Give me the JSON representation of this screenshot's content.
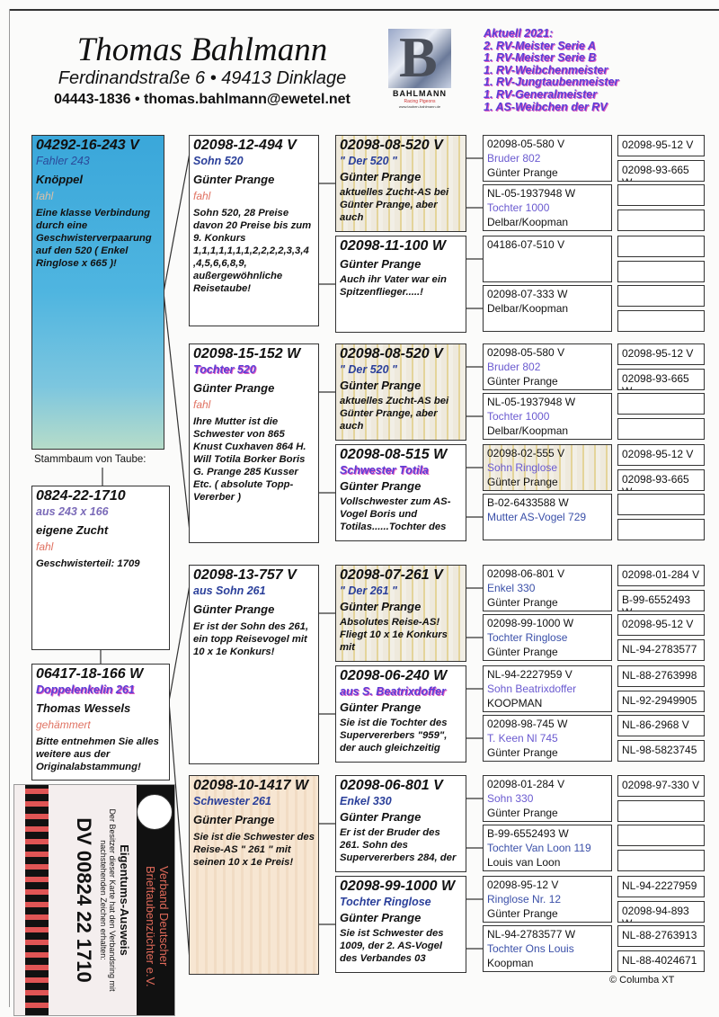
{
  "header": {
    "name": "Thomas Bahlmann",
    "address": "Ferdinandstraße 6 • 49413 Dinklage",
    "contact": "04443-1836 • thomas.bahlmann@ewetel.net",
    "logo": {
      "letter": "B",
      "title": "BAHLMANN",
      "subtitle": "Racing Pigeons",
      "url": "www.tauben-bahlmann.de"
    },
    "achievements": [
      "Aktuell 2021:",
      "2. RV-Meister Serie A",
      "1. RV-Meister Serie B",
      "1. RV-Weibchenmeister",
      "1. RV-Jungtaubenmeister",
      "1. RV-Generalmeister",
      "1. AS-Weibchen der RV"
    ]
  },
  "colors": {
    "name_blue": "#2a3f9a",
    "color_red": "#e07262",
    "achievements": "#5b3ed6",
    "main_box": "#3aa7da"
  },
  "subject": {
    "ring": "04292-16-243 V",
    "name": "Fahler 243",
    "breeder": "Knöppel",
    "color": "fahl",
    "note": "Eine klasse Verbindung durch eine Geschwisterverpaarung auf  den 520 ( Enkel Ringlose x 665 )!"
  },
  "stammbaum_label": "Stammbaum von Taube:",
  "partner": {
    "ring": "0824-22-1710",
    "name": "aus 243 x 166",
    "breeder": "eigene Zucht",
    "color": "fahl",
    "note": "Geschwisterteil: 1709"
  },
  "mother": {
    "ring": "06417-18-166 W",
    "name": "Doppelenkelin 261",
    "breeder": "Thomas Wessels",
    "color": "gehämmert",
    "note": "Bitte entnehmen Sie alles weitere aus der Originalabstammung!"
  },
  "parents": [
    {
      "ring": "02098-12-494 V",
      "name": "Sohn 520",
      "breeder": "Günter Prange",
      "color": "fahl",
      "note": "Sohn 520, 28 Preise davon 20 Preise bis zum 9. Konkurs 1,1,1,1,1,1,1,2,2,2,2,3,3,4 ,4,5,6,6,8,9, außergewöhnliche Reisetaube!"
    },
    {
      "ring": "02098-15-152 W",
      "name": "Tochter 520",
      "breeder": "Günter Prange",
      "color": "fahl",
      "note": "Ihre Mutter ist die Schwester von 865 Knust Cuxhaven 864 H. Will Totila Borker Boris G. Prange 285 Kusser Etc. ( absolute Topp-Vererber )"
    },
    {
      "ring": "02098-13-757 V",
      "name": "aus Sohn 261",
      "breeder": "Günter Prange",
      "note": "Er ist der Sohn des 261, ein topp Reisevogel mit 10 x 1e Konkurs!"
    },
    {
      "ring": "02098-10-1417 W",
      "name": "Schwester 261",
      "breeder": "Günter Prange",
      "note": "Sie ist die Schwester des Reise-AS \" 261 \" mit seinen 10 x 1e Preis!"
    }
  ],
  "grandparents": [
    {
      "ring": "02098-08-520 V",
      "name": "\" Der 520 \"",
      "breeder": "Günter Prange",
      "note": "aktuelles Zucht-AS bei Günter Prange, aber auch"
    },
    {
      "ring": "02098-11-100 W",
      "breeder": "Günter Prange",
      "note": "Auch ihr Vater war ein Spitzenflieger.....!"
    },
    {
      "ring": "02098-08-520 V",
      "name": "\" Der 520 \"",
      "breeder": "Günter Prange",
      "note": "aktuelles Zucht-AS bei Günter Prange, aber auch"
    },
    {
      "ring": "02098-08-515 W",
      "name": "Schwester Totila",
      "breeder": "Günter Prange",
      "note": "Vollschwester zum AS-Vogel Boris und Totilas......Tochter des"
    },
    {
      "ring": "02098-07-261 V",
      "name": "\" Der 261 \"",
      "breeder": "Günter Prange",
      "note": "Absolutes Reise-AS! Fliegt 10 x 1e Konkurs mit"
    },
    {
      "ring": "02098-06-240 W",
      "name": "aus S. Beatrixdoffer",
      "breeder": "Günter Prange",
      "note": "Sie ist die Tochter des Supervererbers \"959\", der auch gleichzeitig"
    },
    {
      "ring": "02098-06-801 V",
      "name": "Enkel 330",
      "breeder": "Günter Prange",
      "note": "Er ist der Bruder des 261. Sohn des Supervererbers 284, der"
    },
    {
      "ring": "02098-99-1000 W",
      "name": "Tochter Ringlose",
      "breeder": "Günter Prange",
      "note": "Sie ist Schwester des 1009, der 2. AS-Vogel des Verbandes 03"
    }
  ],
  "great_grandparents": [
    {
      "ring": "02098-05-580 V",
      "name": "Bruder 802",
      "breeder": "Günter Prange"
    },
    {
      "ring": "NL-05-1937948 W",
      "name": "Tochter 1000",
      "breeder": "Delbar/Koopman"
    },
    {
      "ring": "04186-07-510 V"
    },
    {
      "ring": "02098-07-333 W",
      "breeder": "Delbar/Koopman"
    },
    {
      "ring": "02098-05-580 V",
      "name": "Bruder 802",
      "breeder": "Günter Prange"
    },
    {
      "ring": "NL-05-1937948 W",
      "name": "Tochter 1000",
      "breeder": "Delbar/Koopman"
    },
    {
      "ring": "02098-02-555 V",
      "name": "Sohn Ringlose",
      "breeder": "Günter Prange"
    },
    {
      "ring": "B-02-6433588 W",
      "name": "Mutter AS-Vogel 729"
    },
    {
      "ring": "02098-06-801 V",
      "name": "Enkel 330",
      "breeder": "Günter Prange"
    },
    {
      "ring": "02098-99-1000 W",
      "name": "Tochter Ringlose",
      "breeder": "Günter Prange"
    },
    {
      "ring": "NL-94-2227959 V",
      "name": "Sohn Beatrixdoffer",
      "breeder": "KOOPMAN"
    },
    {
      "ring": "02098-98-745 W",
      "name": "T. Keen Nl 745",
      "breeder": "Günter Prange"
    },
    {
      "ring": "02098-01-284 V",
      "name": "Sohn 330",
      "breeder": "Günter Prange"
    },
    {
      "ring": "B-99-6552493 W",
      "name": "Tochter Van Loon 119",
      "breeder": "Louis van Loon"
    },
    {
      "ring": "02098-95-12 V",
      "name": "Ringlose Nr. 12",
      "breeder": "Günter Prange"
    },
    {
      "ring": "NL-94-2783577 W",
      "name": "Tochter Ons Louis",
      "breeder": "Koopman"
    }
  ],
  "gen5": [
    "02098-95-12 V",
    "02098-93-665 W",
    "",
    "",
    "",
    "",
    "",
    "",
    "02098-95-12 V",
    "02098-93-665 W",
    "",
    "",
    "02098-95-12 V",
    "02098-93-665 W",
    "",
    "",
    "02098-01-284 V",
    "B-99-6552493 W",
    "02098-95-12 V",
    "NL-94-2783577",
    "NL-88-2763998",
    "NL-92-2949905",
    "NL-86-2968 V",
    "NL-98-5823745",
    "02098-97-330 V",
    "",
    "",
    "",
    "NL-94-2227959",
    "02098-94-893 W",
    "NL-88-2763913",
    "NL-88-4024671"
  ],
  "card": {
    "org": "Verband Deutscher Brieftaubenzüchter e.V.",
    "title": "Eigentums-Ausweis",
    "text": "Der Besitzer dieser Karte hat den Verbandsring mit nachstehenden Zeichen erhalten:",
    "number": "DV 00824 22 1710"
  },
  "footer": {
    "copyright": "© Columba XT"
  }
}
